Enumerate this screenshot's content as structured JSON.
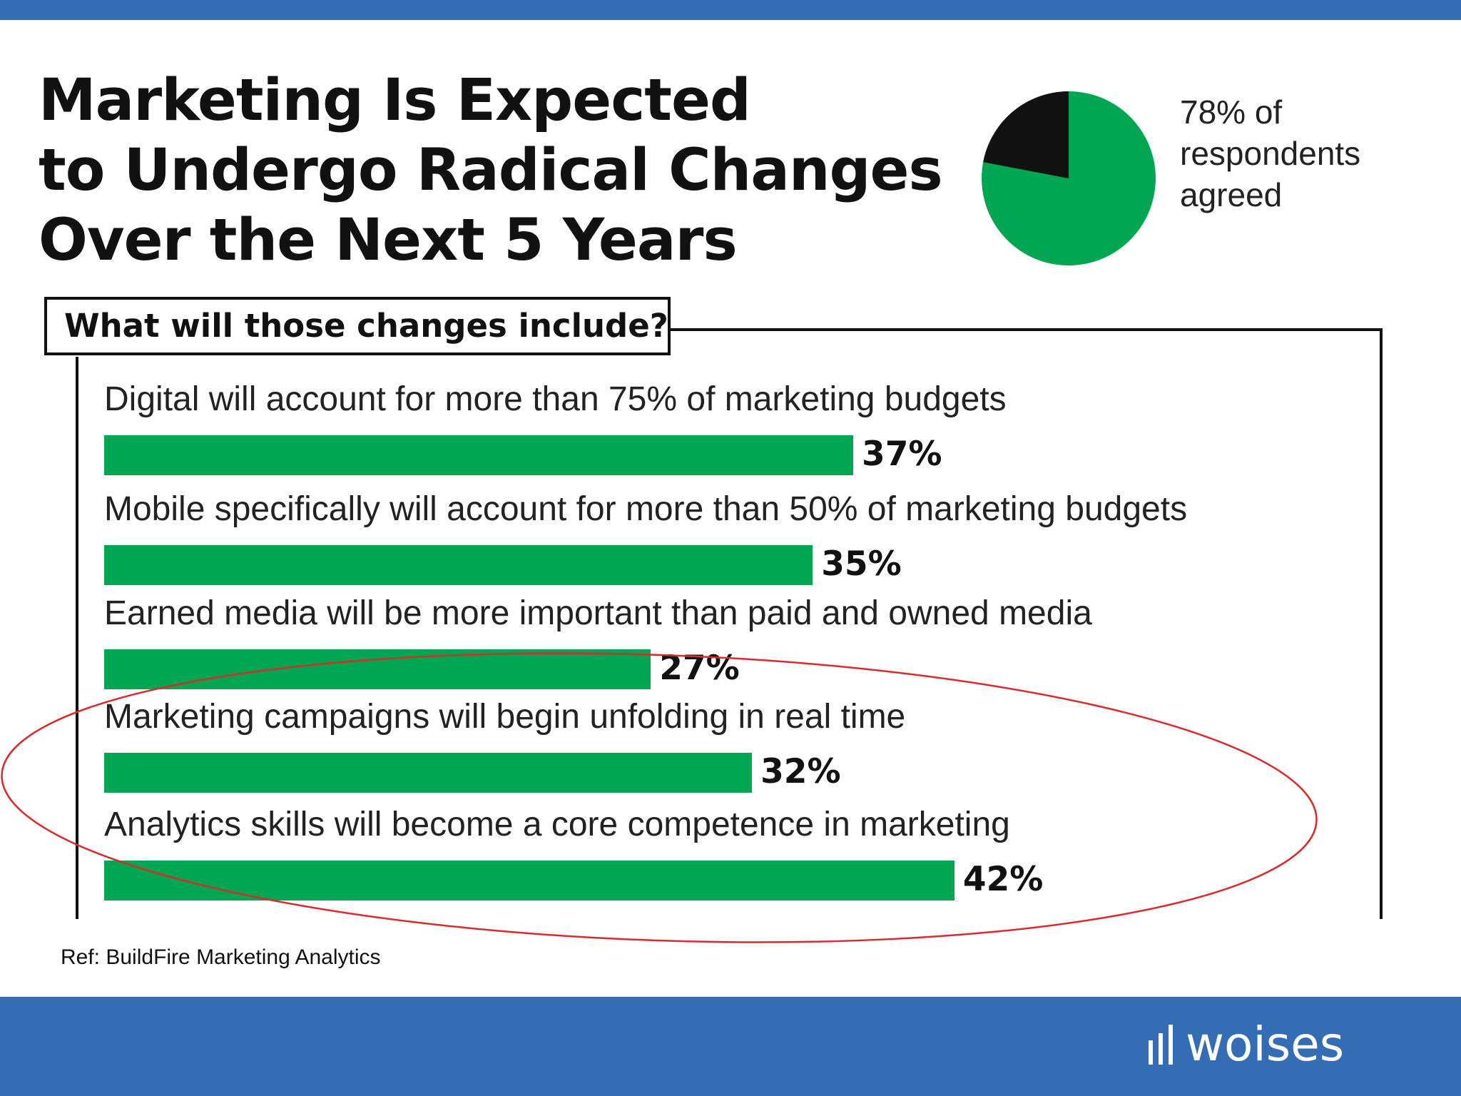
{
  "title_lines": [
    "Marketing Is Expected",
    "to Undergo Radical Changes",
    "Over the Next 5 Years"
  ],
  "pie": {
    "agreed_value": 78,
    "caption_lines": [
      "78% of",
      "respondents",
      "agreed"
    ],
    "colors": {
      "agreed": "#00a651",
      "other": "#111111"
    }
  },
  "question": "What will those changes include?",
  "chart_data": {
    "type": "bar",
    "orientation": "horizontal",
    "categories": [
      "Digital will account for more than 75% of marketing budgets",
      "Mobile specifically will account for more than 50% of marketing budgets",
      "Earned media will be more important than paid and owned media",
      "Marketing campaigns will begin unfolding in real time",
      "Analytics skills will become a core competence in marketing"
    ],
    "values": [
      37,
      35,
      27,
      32,
      42
    ],
    "value_labels": [
      "37%",
      "35%",
      "27%",
      "32%",
      "42%"
    ],
    "xlim": [
      0,
      100
    ],
    "grid": false,
    "bar_color": "#00a651",
    "highlight_color": "#d92b2b",
    "highlighted_categories": [
      3,
      4
    ]
  },
  "reference": "Ref: BuildFire Marketing Analytics",
  "logo": {
    "text": "woises"
  },
  "theme": {
    "band_color": "#346db4"
  }
}
